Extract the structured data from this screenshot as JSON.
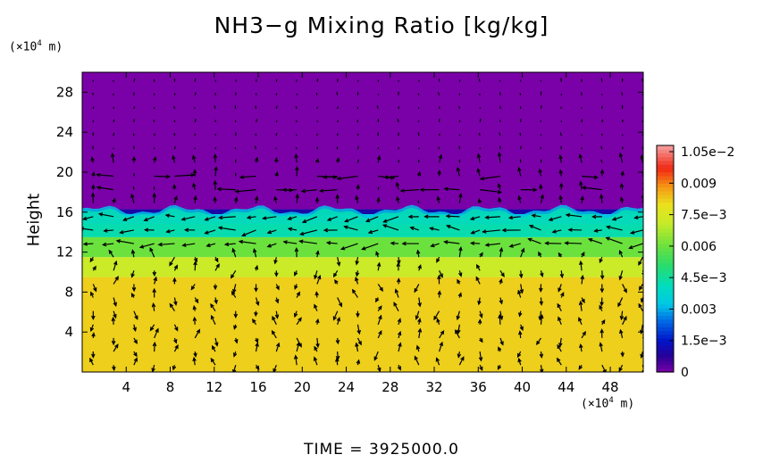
{
  "chart_data": {
    "type": "heatmap",
    "title": "NH3−g Mixing Ratio [kg/kg]",
    "ylabel": "Height",
    "x_unit": "(×10",
    "y_unit": "(×10",
    "unit_exp": "4",
    "unit_tail": " m)",
    "footer": "TIME  =  3925000.0",
    "xlim": [
      0,
      51
    ],
    "ylim": [
      0,
      30
    ],
    "x_ticks": [
      4,
      8,
      12,
      16,
      20,
      24,
      28,
      32,
      36,
      40,
      44,
      48
    ],
    "y_ticks": [
      4,
      8,
      12,
      16,
      20,
      24,
      28
    ],
    "colorbar": {
      "min": 0,
      "max": 0.0108,
      "tick_values": [
        0,
        0.0015,
        0.003,
        0.0045,
        0.006,
        0.0075,
        0.009,
        0.0105
      ],
      "tick_labels": [
        "0",
        "1.5e−3",
        "0.003",
        "4.5e−3",
        "0.006",
        "7.5e−3",
        "0.009",
        "1.05e−2"
      ]
    },
    "field_bands": [
      {
        "y_from": 0,
        "y_to": 9.5,
        "value": 0.0082
      },
      {
        "y_from": 9.5,
        "y_to": 11.5,
        "value": 0.0072
      },
      {
        "y_from": 11.5,
        "y_to": 13.5,
        "value": 0.006
      },
      {
        "y_from": 13.5,
        "y_to": 15.0,
        "value": 0.005
      },
      {
        "y_from": 15.0,
        "y_to": 15.8,
        "value": 0.0036
      },
      {
        "y_from": 15.8,
        "y_to": 16.3,
        "value": 0.001
      },
      {
        "y_from": 16.3,
        "y_to": 30,
        "value": 0.0
      }
    ],
    "colors": {
      "background": "#7a00a8",
      "axis": "#000000"
    }
  }
}
